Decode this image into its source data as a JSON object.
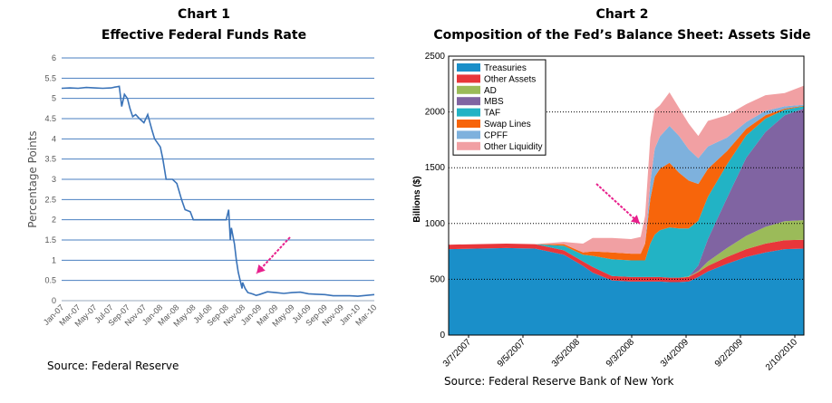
{
  "colors": {
    "line": "#3a73b8",
    "gridline": "#4a7fc1",
    "arrow": "#e8208c"
  },
  "chart1": {
    "heading": "Chart 1",
    "source": "Source: Federal Reserve"
  },
  "chart2": {
    "heading": "Chart 2",
    "source": "Source: Federal Reserve Bank of New York"
  },
  "chart_data": [
    {
      "type": "line",
      "title": "Effective Federal Funds Rate",
      "ylabel": "Percentage Points",
      "xlabel": "",
      "ylim": [
        0,
        6
      ],
      "yticks": [
        0,
        0.5,
        1,
        1.5,
        2,
        2.5,
        3,
        3.5,
        4,
        4.5,
        5,
        5.5,
        6
      ],
      "ytick_labels": [
        "0",
        "0.5",
        "1",
        "1.5",
        "2",
        "2.5",
        "3",
        "3.5",
        "4",
        "4.5",
        "5",
        "5.5",
        "6"
      ],
      "xtick_labels": [
        "Jan-07",
        "Mar-07",
        "May-07",
        "Jul-07",
        "Sep-07",
        "Nov-07",
        "Jan-08",
        "Mar-08",
        "May-08",
        "Jul-08",
        "Sep-08",
        "Nov-08",
        "Jan-09",
        "Mar-09",
        "May-09",
        "Jul-09",
        "Sep-09",
        "Nov-09",
        "Jan-10",
        "Mar-10"
      ],
      "x_range": [
        "2007-01",
        "2010-03"
      ],
      "grid": true,
      "annotation": "arrow pointing to Nov-08 drop",
      "series": [
        {
          "x": [
            "2007-01",
            "2007-02",
            "2007-03",
            "2007-04",
            "2007-05",
            "2007-06",
            "2007-07",
            "2007-07-15",
            "2007-08",
            "2007-08-10",
            "2007-08-20",
            "2007-09",
            "2007-09-10",
            "2007-09-20",
            "2007-10",
            "2007-10-15",
            "2007-11",
            "2007-11-15",
            "2007-12",
            "2007-12-10",
            "2008-01",
            "2008-01-10",
            "2008-01-22",
            "2008-02",
            "2008-02-15",
            "2008-03",
            "2008-03-18",
            "2008-04",
            "2008-04-20",
            "2008-05",
            "2008-06",
            "2008-07",
            "2008-08",
            "2008-09",
            "2008-09-10",
            "2008-09-16",
            "2008-09-20",
            "2008-10",
            "2008-10-08",
            "2008-10-15",
            "2008-10-22",
            "2008-10-29",
            "2008-11",
            "2008-11-10",
            "2008-11-20",
            "2008-12",
            "2008-12-10",
            "2008-12-20",
            "2009-01",
            "2009-02",
            "2009-03",
            "2009-04",
            "2009-05",
            "2009-06",
            "2009-07",
            "2009-08",
            "2009-09",
            "2009-10",
            "2009-11",
            "2009-12",
            "2010-01",
            "2010-02",
            "2010-03"
          ],
          "values": [
            5.25,
            5.26,
            5.25,
            5.27,
            5.26,
            5.25,
            5.26,
            5.28,
            5.3,
            4.8,
            5.1,
            5.0,
            4.75,
            4.55,
            4.6,
            4.5,
            4.4,
            4.6,
            4.2,
            4.0,
            3.8,
            3.5,
            3.0,
            3.0,
            3.0,
            2.9,
            2.5,
            2.25,
            2.2,
            2.0,
            2.0,
            2.0,
            2.0,
            2.0,
            2.25,
            1.5,
            1.8,
            1.4,
            1.0,
            0.7,
            0.5,
            0.3,
            0.45,
            0.3,
            0.2,
            0.18,
            0.16,
            0.13,
            0.15,
            0.22,
            0.2,
            0.18,
            0.2,
            0.21,
            0.17,
            0.16,
            0.15,
            0.12,
            0.12,
            0.12,
            0.11,
            0.13,
            0.15
          ]
        }
      ]
    },
    {
      "type": "area",
      "title": "Composition of the Fed’s Balance Sheet: Assets Side",
      "ylabel": "Billions ($)",
      "xlabel": "",
      "ylim": [
        0,
        2500
      ],
      "yticks": [
        0,
        500,
        1000,
        1500,
        2000,
        2500
      ],
      "ytick_labels": [
        "0",
        "500",
        "1000",
        "1500",
        "2000",
        "2500"
      ],
      "xtick_labels": [
        "3/7/2007",
        "9/5/2007",
        "3/5/2008",
        "9/3/2008",
        "3/4/2009",
        "9/2/2009",
        "2/10/2010"
      ],
      "x_range": [
        "2007-01",
        "2010-02"
      ],
      "grid": true,
      "legend_position": "top-left",
      "annotation": "arrow pointing to Sep-2008 surge",
      "x": [
        "2007-01",
        "2007-04",
        "2007-07",
        "2007-10",
        "2008-01",
        "2008-03",
        "2008-04",
        "2008-06",
        "2008-08",
        "2008-09",
        "2008-09-15",
        "2008-10",
        "2008-10-15",
        "2008-11",
        "2008-12",
        "2009-01",
        "2009-02",
        "2009-03",
        "2009-04",
        "2009-06",
        "2009-08",
        "2009-10",
        "2009-12",
        "2010-02"
      ],
      "series": [
        {
          "name": "Treasuries",
          "color": "#1a8fc9",
          "values": [
            770,
            775,
            780,
            775,
            720,
            620,
            560,
            490,
            480,
            480,
            480,
            480,
            480,
            480,
            475,
            475,
            480,
            520,
            570,
            640,
            700,
            740,
            770,
            775
          ]
        },
        {
          "name": "Other Assets",
          "color": "#e8363a",
          "values": [
            40,
            40,
            40,
            40,
            40,
            40,
            50,
            40,
            40,
            40,
            40,
            40,
            40,
            40,
            40,
            40,
            40,
            45,
            50,
            60,
            70,
            80,
            80,
            80
          ]
        },
        {
          "name": "AD",
          "color": "#9bbb59",
          "values": [
            0,
            0,
            0,
            0,
            0,
            0,
            0,
            0,
            0,
            0,
            0,
            0,
            0,
            0,
            0,
            0,
            5,
            10,
            40,
            80,
            120,
            150,
            170,
            175
          ]
        },
        {
          "name": "MBS",
          "color": "#8064a2",
          "values": [
            0,
            0,
            0,
            0,
            0,
            0,
            0,
            0,
            0,
            0,
            0,
            0,
            0,
            0,
            0,
            0,
            0,
            50,
            200,
            450,
            700,
            850,
            950,
            1000
          ]
        },
        {
          "name": "TAF",
          "color": "#22b3c5",
          "values": [
            0,
            0,
            0,
            0,
            40,
            60,
            100,
            150,
            150,
            150,
            150,
            300,
            380,
            420,
            450,
            440,
            430,
            400,
            380,
            300,
            200,
            120,
            50,
            20
          ]
        },
        {
          "name": "Swap Lines",
          "color": "#f7650b",
          "values": [
            0,
            0,
            0,
            0,
            15,
            20,
            40,
            60,
            60,
            60,
            150,
            400,
            520,
            550,
            580,
            500,
            430,
            330,
            250,
            120,
            60,
            30,
            10,
            5
          ]
        },
        {
          "name": "CPFF",
          "color": "#7eb1dd",
          "values": [
            0,
            0,
            0,
            0,
            0,
            0,
            0,
            0,
            0,
            0,
            0,
            150,
            250,
            290,
            330,
            330,
            280,
            230,
            200,
            120,
            60,
            40,
            20,
            10
          ]
        },
        {
          "name": "Other Liquidity",
          "color": "#f1a0a3",
          "values": [
            0,
            0,
            0,
            0,
            20,
            80,
            120,
            130,
            130,
            150,
            250,
            400,
            350,
            280,
            300,
            250,
            230,
            200,
            230,
            200,
            160,
            140,
            120,
            170
          ]
        }
      ]
    }
  ]
}
